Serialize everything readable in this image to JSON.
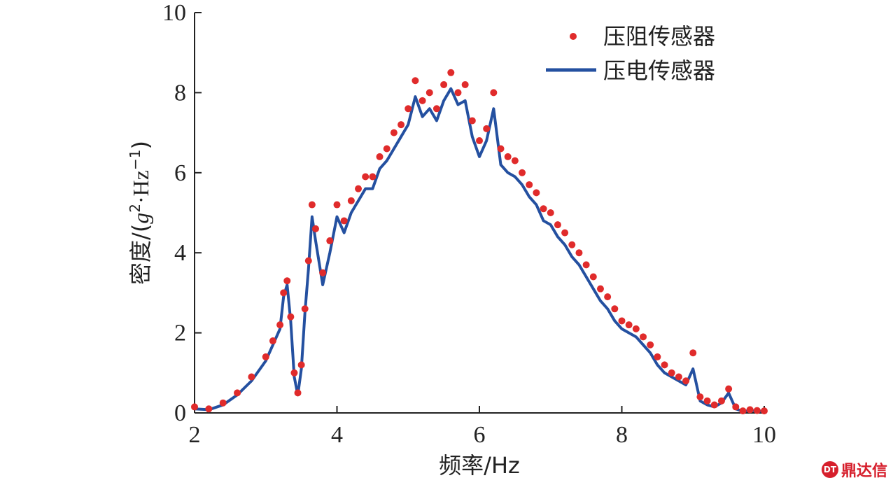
{
  "chart_data": {
    "type": "line",
    "xlabel": "频率/Hz",
    "ylabel_prefix": "密度/(",
    "ylabel_g": "g",
    "ylabel_sup1": "2",
    "ylabel_mid": "·Hz",
    "ylabel_sup2": "−1",
    "ylabel_suffix": ")",
    "xlim": [
      2,
      10
    ],
    "ylim": [
      0,
      10
    ],
    "xticks": [
      "2",
      "4",
      "6",
      "8",
      "10"
    ],
    "yticks": [
      "0",
      "2",
      "4",
      "6",
      "8",
      "10"
    ],
    "legend_position": "top-right",
    "grid": false,
    "series": [
      {
        "name": "压阻传感器",
        "style": "scatter",
        "color": "#e02b2b",
        "x": [
          2.0,
          2.2,
          2.4,
          2.6,
          2.8,
          3.0,
          3.1,
          3.2,
          3.25,
          3.3,
          3.35,
          3.4,
          3.45,
          3.5,
          3.55,
          3.6,
          3.65,
          3.7,
          3.8,
          3.9,
          4.0,
          4.1,
          4.2,
          4.3,
          4.4,
          4.5,
          4.6,
          4.7,
          4.8,
          4.9,
          5.0,
          5.1,
          5.2,
          5.3,
          5.4,
          5.5,
          5.6,
          5.7,
          5.8,
          5.9,
          6.0,
          6.1,
          6.2,
          6.3,
          6.4,
          6.5,
          6.6,
          6.7,
          6.8,
          6.9,
          7.0,
          7.1,
          7.2,
          7.3,
          7.4,
          7.5,
          7.6,
          7.7,
          7.8,
          7.9,
          8.0,
          8.1,
          8.2,
          8.3,
          8.4,
          8.5,
          8.6,
          8.7,
          8.8,
          8.9,
          9.0,
          9.1,
          9.2,
          9.3,
          9.4,
          9.5,
          9.6,
          9.7,
          9.8,
          9.9,
          10.0
        ],
        "values": [
          0.15,
          0.1,
          0.25,
          0.5,
          0.9,
          1.4,
          1.8,
          2.2,
          3.0,
          3.3,
          2.4,
          1.0,
          0.5,
          1.2,
          2.6,
          3.8,
          5.2,
          4.6,
          3.5,
          4.3,
          5.2,
          4.8,
          5.3,
          5.6,
          5.9,
          5.9,
          6.4,
          6.6,
          7.0,
          7.2,
          7.6,
          8.3,
          7.8,
          8.0,
          7.6,
          8.2,
          8.5,
          8.0,
          8.2,
          7.3,
          6.8,
          7.1,
          8.0,
          6.6,
          6.4,
          6.3,
          6.0,
          5.7,
          5.5,
          5.1,
          5.0,
          4.7,
          4.5,
          4.2,
          4.0,
          3.7,
          3.4,
          3.1,
          2.9,
          2.6,
          2.3,
          2.2,
          2.1,
          1.9,
          1.7,
          1.4,
          1.2,
          1.0,
          0.9,
          0.8,
          1.5,
          0.4,
          0.3,
          0.2,
          0.3,
          0.6,
          0.15,
          0.05,
          0.08,
          0.06,
          0.05
        ]
      },
      {
        "name": "压电传感器",
        "style": "line",
        "color": "#2450a0",
        "x": [
          2.0,
          2.2,
          2.4,
          2.6,
          2.8,
          3.0,
          3.1,
          3.2,
          3.25,
          3.3,
          3.35,
          3.4,
          3.45,
          3.5,
          3.55,
          3.6,
          3.65,
          3.7,
          3.8,
          3.9,
          4.0,
          4.1,
          4.2,
          4.3,
          4.4,
          4.5,
          4.6,
          4.7,
          4.8,
          4.9,
          5.0,
          5.1,
          5.2,
          5.3,
          5.4,
          5.5,
          5.6,
          5.7,
          5.8,
          5.9,
          6.0,
          6.1,
          6.2,
          6.3,
          6.4,
          6.5,
          6.6,
          6.7,
          6.8,
          6.9,
          7.0,
          7.1,
          7.2,
          7.3,
          7.4,
          7.5,
          7.6,
          7.7,
          7.8,
          7.9,
          8.0,
          8.1,
          8.2,
          8.3,
          8.4,
          8.5,
          8.6,
          8.7,
          8.8,
          8.9,
          9.0,
          9.1,
          9.2,
          9.3,
          9.4,
          9.5,
          9.6,
          9.7,
          9.8,
          9.9,
          10.0
        ],
        "values": [
          0.1,
          0.08,
          0.2,
          0.45,
          0.8,
          1.3,
          1.7,
          2.1,
          2.9,
          3.2,
          2.3,
          0.9,
          0.45,
          1.1,
          2.5,
          3.6,
          4.9,
          4.3,
          3.2,
          4.0,
          4.9,
          4.5,
          5.0,
          5.3,
          5.6,
          5.6,
          6.1,
          6.3,
          6.6,
          6.9,
          7.2,
          7.9,
          7.4,
          7.6,
          7.3,
          7.8,
          8.1,
          7.7,
          7.8,
          6.9,
          6.4,
          6.8,
          7.6,
          6.2,
          6.0,
          5.9,
          5.7,
          5.4,
          5.2,
          4.8,
          4.7,
          4.4,
          4.2,
          3.9,
          3.7,
          3.4,
          3.1,
          2.8,
          2.6,
          2.3,
          2.1,
          2.0,
          1.9,
          1.7,
          1.5,
          1.2,
          1.0,
          0.9,
          0.8,
          0.7,
          1.1,
          0.3,
          0.2,
          0.15,
          0.25,
          0.5,
          0.1,
          0.04,
          0.06,
          0.05,
          0.04
        ]
      }
    ]
  },
  "watermark": {
    "text": "鼎达信",
    "logo_text": "DT"
  }
}
